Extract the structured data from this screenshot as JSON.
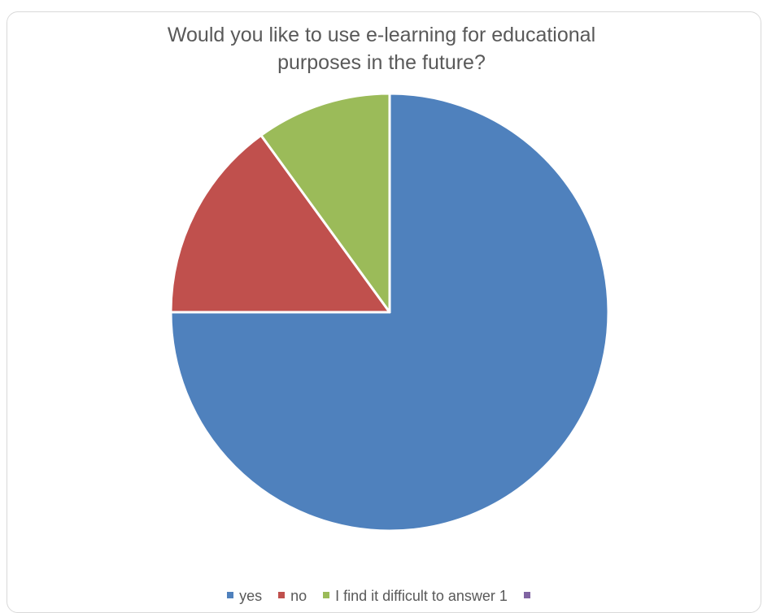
{
  "chart_data": {
    "type": "pie",
    "title_lines": [
      "Would you like to use e-learning for educational",
      "purposes in the future?"
    ],
    "categories": [
      "yes",
      "no",
      "I find it difficult to answer 1",
      ""
    ],
    "values": [
      75,
      15,
      10,
      0
    ],
    "colors": [
      "#4f81bd",
      "#c0504d",
      "#9bbb59",
      "#8064a2"
    ],
    "start_angle_deg": 0,
    "direction": "clockwise",
    "legend_position": "bottom"
  }
}
